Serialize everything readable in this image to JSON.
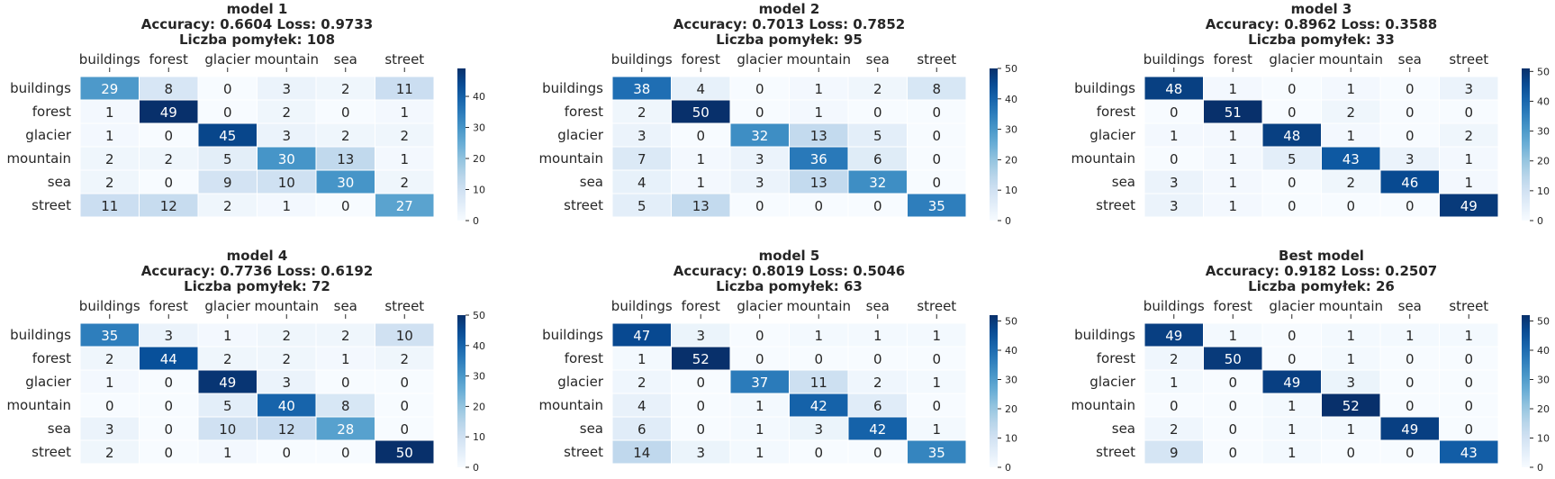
{
  "colormap": {
    "low": "#f7fbff",
    "high": "#08306b"
  },
  "labels": [
    "buildings",
    "forest",
    "glacier",
    "mountain",
    "sea",
    "street"
  ],
  "chart_data": [
    {
      "type": "heatmap",
      "title_lines": [
        "model 1",
        "Accuracy: 0.6604 Loss: 0.9733",
        "Liczba pomyłek: 108"
      ],
      "vmax": 49,
      "colorbar_ticks": [
        0,
        10,
        20,
        30,
        40
      ],
      "matrix": [
        [
          29,
          8,
          0,
          3,
          2,
          11
        ],
        [
          1,
          49,
          0,
          2,
          0,
          1
        ],
        [
          1,
          0,
          45,
          3,
          2,
          2
        ],
        [
          2,
          2,
          5,
          30,
          13,
          1
        ],
        [
          2,
          0,
          9,
          10,
          30,
          2
        ],
        [
          11,
          12,
          2,
          1,
          0,
          27
        ]
      ]
    },
    {
      "type": "heatmap",
      "title_lines": [
        "model 2",
        "Accuracy: 0.7013 Loss: 0.7852",
        "Liczba pomyłek: 95"
      ],
      "vmax": 50,
      "colorbar_ticks": [
        0,
        10,
        20,
        30,
        40,
        50
      ],
      "matrix": [
        [
          38,
          4,
          0,
          1,
          2,
          8
        ],
        [
          2,
          50,
          0,
          1,
          0,
          0
        ],
        [
          3,
          0,
          32,
          13,
          5,
          0
        ],
        [
          7,
          1,
          3,
          36,
          6,
          0
        ],
        [
          4,
          1,
          3,
          13,
          32,
          0
        ],
        [
          5,
          13,
          0,
          0,
          0,
          35
        ]
      ]
    },
    {
      "type": "heatmap",
      "title_lines": [
        "model 3",
        "Accuracy: 0.8962 Loss: 0.3588",
        "Liczba pomyłek: 33"
      ],
      "vmax": 51,
      "colorbar_ticks": [
        0,
        10,
        20,
        30,
        40,
        50
      ],
      "matrix": [
        [
          48,
          1,
          0,
          1,
          0,
          3
        ],
        [
          0,
          51,
          0,
          2,
          0,
          0
        ],
        [
          1,
          1,
          48,
          1,
          0,
          2
        ],
        [
          0,
          1,
          5,
          43,
          3,
          1
        ],
        [
          3,
          1,
          0,
          2,
          46,
          1
        ],
        [
          3,
          1,
          0,
          0,
          0,
          49
        ]
      ]
    },
    {
      "type": "heatmap",
      "title_lines": [
        "model 4",
        "Accuracy: 0.7736 Loss: 0.6192",
        "Liczba pomyłek: 72"
      ],
      "vmax": 50,
      "colorbar_ticks": [
        0,
        10,
        20,
        30,
        40,
        50
      ],
      "matrix": [
        [
          35,
          3,
          1,
          2,
          2,
          10
        ],
        [
          2,
          44,
          2,
          2,
          1,
          2
        ],
        [
          1,
          0,
          49,
          3,
          0,
          0
        ],
        [
          0,
          0,
          5,
          40,
          8,
          0
        ],
        [
          3,
          0,
          10,
          12,
          28,
          0
        ],
        [
          2,
          0,
          1,
          0,
          0,
          50
        ]
      ]
    },
    {
      "type": "heatmap",
      "title_lines": [
        "model 5",
        "Accuracy: 0.8019 Loss: 0.5046",
        "Liczba pomyłek: 63"
      ],
      "vmax": 52,
      "colorbar_ticks": [
        0,
        10,
        20,
        30,
        40,
        50
      ],
      "matrix": [
        [
          47,
          3,
          0,
          1,
          1,
          1
        ],
        [
          1,
          52,
          0,
          0,
          0,
          0
        ],
        [
          2,
          0,
          37,
          11,
          2,
          1
        ],
        [
          4,
          0,
          1,
          42,
          6,
          0
        ],
        [
          6,
          0,
          1,
          3,
          42,
          1
        ],
        [
          14,
          3,
          1,
          0,
          0,
          35
        ]
      ]
    },
    {
      "type": "heatmap",
      "title_lines": [
        "Best model",
        "Accuracy: 0.9182 Loss: 0.2507",
        "Liczba pomyłek: 26"
      ],
      "vmax": 52,
      "colorbar_ticks": [
        0,
        10,
        20,
        30,
        40,
        50
      ],
      "matrix": [
        [
          49,
          1,
          0,
          1,
          1,
          1
        ],
        [
          2,
          50,
          0,
          1,
          0,
          0
        ],
        [
          1,
          0,
          49,
          3,
          0,
          0
        ],
        [
          0,
          0,
          1,
          52,
          0,
          0
        ],
        [
          2,
          0,
          1,
          1,
          49,
          0
        ],
        [
          9,
          0,
          1,
          0,
          0,
          43
        ]
      ]
    }
  ]
}
